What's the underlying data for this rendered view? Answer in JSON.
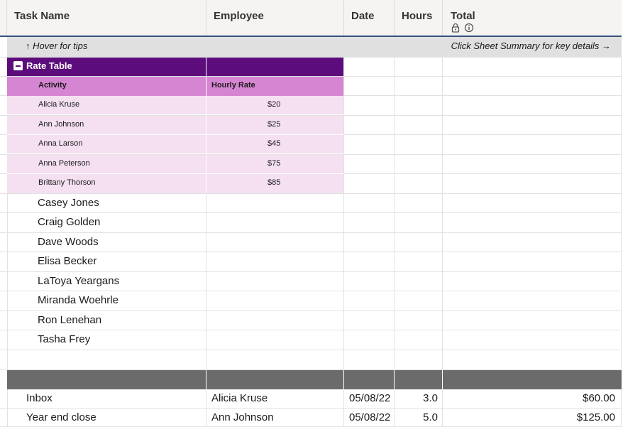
{
  "columns": {
    "task": "Task Name",
    "employee": "Employee",
    "date": "Date",
    "hours": "Hours",
    "total": "Total"
  },
  "total_icons": [
    "lock-icon",
    "info-icon"
  ],
  "hover_row": {
    "left_text": "↑ Hover for tips",
    "right_text": "Click Sheet Summary for key details →"
  },
  "rate_table": {
    "title": "Rate Table",
    "header_activity": "Activity",
    "header_rate": "Hourly Rate",
    "rows": [
      {
        "name": "Alicia Kruse",
        "rate": "$20"
      },
      {
        "name": "Ann Johnson",
        "rate": "$25"
      },
      {
        "name": "Anna Larson",
        "rate": "$45"
      },
      {
        "name": "Anna Peterson",
        "rate": "$75"
      },
      {
        "name": "Brittany Thorson",
        "rate": "$85"
      }
    ]
  },
  "employees": [
    "Casey Jones",
    "Craig Golden",
    "Dave Woods",
    "Elisa Becker",
    "LaToya Yeargans",
    "Miranda Woehrle",
    "Ron Lenehan",
    "Tasha Frey"
  ],
  "tasks": [
    {
      "task": "Inbox",
      "employee": "Alicia Kruse",
      "date": "05/08/22",
      "hours": "3.0",
      "total": "$60.00"
    },
    {
      "task": "Year end close",
      "employee": "Ann Johnson",
      "date": "05/08/22",
      "hours": "5.0",
      "total": "$125.00"
    }
  ],
  "colors": {
    "rate_title_bg": "#5c0d7b",
    "rate_header_bg": "#d685d3",
    "rate_row_bg": "#f4e0f1",
    "band_bg": "#6b6b6b",
    "header_rule": "#35517d"
  }
}
